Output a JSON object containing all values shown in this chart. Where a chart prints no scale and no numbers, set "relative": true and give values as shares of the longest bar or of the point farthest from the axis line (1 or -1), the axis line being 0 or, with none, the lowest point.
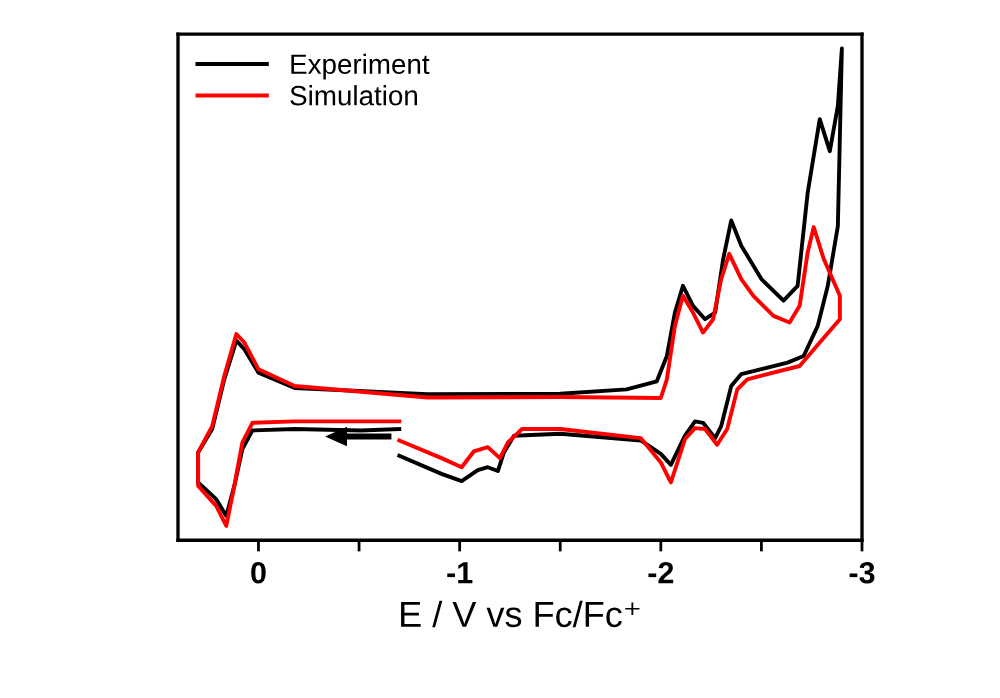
{
  "chart_data": {
    "type": "line",
    "relative": true,
    "xlabel": "E / V vs Fc/Fc⁺",
    "xlim": [
      0.4,
      -3
    ],
    "xticks": [
      0,
      {
        "value": -0.5,
        "label": null
      },
      -1,
      {
        "value": -1.5,
        "label": null
      },
      -2,
      {
        "value": -2.5,
        "label": null
      },
      -3
    ],
    "legend": "top left",
    "grid": false,
    "series": [
      {
        "name": "Experiment",
        "color": "#000000",
        "x": [
          -0.7,
          -0.51,
          -0.18,
          0.03,
          0.08,
          0.12,
          0.16,
          0.21,
          0.3,
          0.3,
          0.23,
          0.17,
          0.11,
          0.07,
          0.0,
          -0.18,
          -0.84,
          -1.5,
          -1.83,
          -1.98,
          -2.03,
          -2.07,
          -2.11,
          -2.16,
          -2.22,
          -2.27,
          -2.31,
          -2.35,
          -2.4,
          -2.5,
          -2.61,
          -2.68,
          -2.73,
          -2.79,
          -2.84,
          -2.88,
          -2.9,
          -2.88,
          -2.83,
          -2.78,
          -2.71,
          -2.63,
          -2.4,
          -2.35,
          -2.3,
          -2.27,
          -2.21,
          -2.17,
          -2.12,
          -2.05,
          -2.0,
          -1.9,
          -1.5,
          -1.27,
          -1.22,
          -1.19,
          -1.14,
          -1.09,
          -1.01,
          -0.91,
          -0.7
        ],
        "values": [
          0.203,
          0.2,
          0.203,
          0.2,
          0.161,
          0.084,
          0.021,
          0.056,
          0.091,
          0.154,
          0.203,
          0.307,
          0.388,
          0.37,
          0.321,
          0.289,
          0.276,
          0.277,
          0.286,
          0.303,
          0.356,
          0.447,
          0.503,
          0.461,
          0.433,
          0.447,
          0.559,
          0.64,
          0.587,
          0.517,
          0.472,
          0.503,
          0.698,
          0.852,
          0.785,
          0.88,
          1.0,
          0.628,
          0.503,
          0.419,
          0.356,
          0.342,
          0.318,
          0.293,
          0.209,
          0.184,
          0.216,
          0.219,
          0.189,
          0.128,
          0.151,
          0.179,
          0.193,
          0.189,
          0.154,
          0.115,
          0.123,
          0.117,
          0.094,
          0.109,
          0.147
        ]
      },
      {
        "name": "Simulation",
        "color": "#ff0000",
        "x": [
          -0.7,
          -0.18,
          0.03,
          0.08,
          0.12,
          0.16,
          0.21,
          0.3,
          0.3,
          0.23,
          0.17,
          0.11,
          0.07,
          0.0,
          -0.18,
          -0.84,
          -1.5,
          -2.0,
          -2.03,
          -2.07,
          -2.11,
          -2.16,
          -2.21,
          -2.26,
          -2.3,
          -2.34,
          -2.4,
          -2.46,
          -2.56,
          -2.64,
          -2.69,
          -2.73,
          -2.76,
          -2.81,
          -2.89,
          -2.89,
          -2.79,
          -2.69,
          -2.43,
          -2.38,
          -2.33,
          -2.28,
          -2.22,
          -2.17,
          -2.12,
          -2.05,
          -2.0,
          -1.9,
          -1.5,
          -1.31,
          -1.24,
          -1.2,
          -1.14,
          -1.07,
          -1.01,
          -0.91,
          -0.7
        ],
        "values": [
          0.219,
          0.219,
          0.216,
          0.175,
          0.084,
          0.0,
          0.042,
          0.084,
          0.154,
          0.209,
          0.314,
          0.402,
          0.384,
          0.328,
          0.293,
          0.269,
          0.27,
          0.268,
          0.307,
          0.419,
          0.482,
          0.447,
          0.405,
          0.433,
          0.517,
          0.57,
          0.517,
          0.482,
          0.44,
          0.426,
          0.461,
          0.573,
          0.626,
          0.559,
          0.482,
          0.433,
          0.384,
          0.335,
          0.307,
          0.286,
          0.203,
          0.17,
          0.203,
          0.205,
          0.182,
          0.091,
          0.133,
          0.184,
          0.203,
          0.203,
          0.175,
          0.142,
          0.165,
          0.156,
          0.123,
          0.142,
          0.179
        ]
      }
    ]
  }
}
